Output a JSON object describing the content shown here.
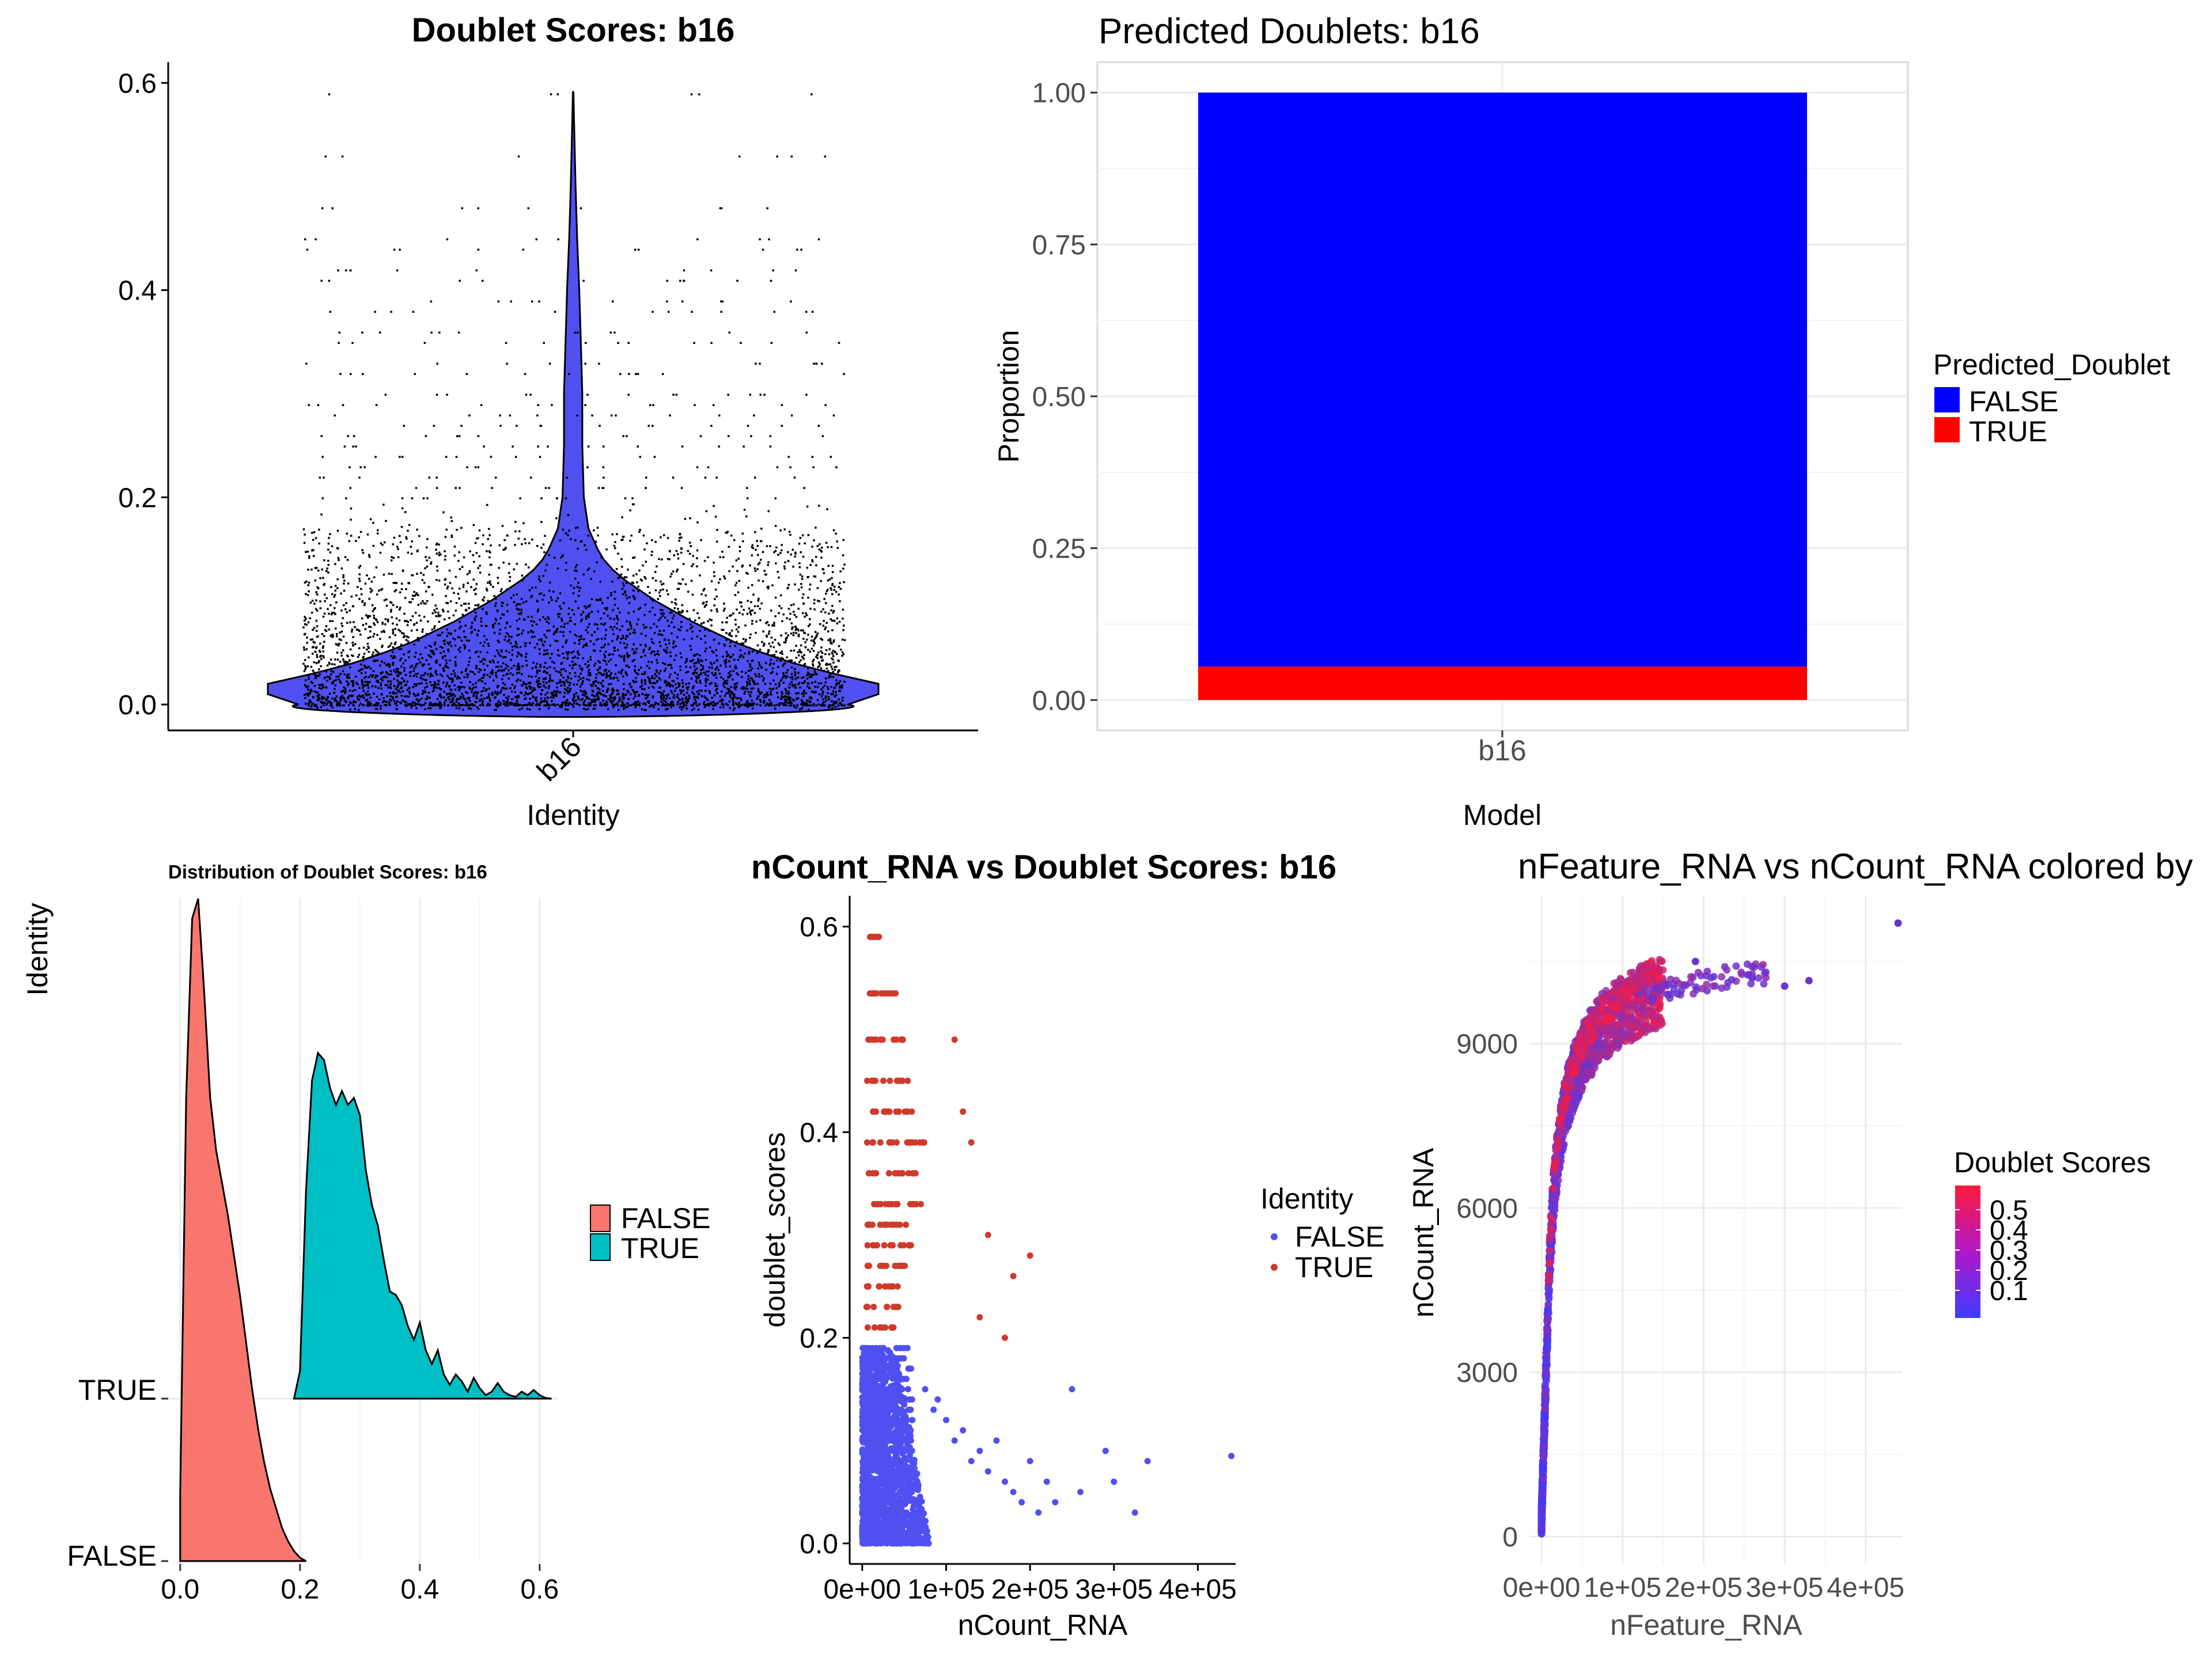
{
  "chart_data": [
    {
      "type": "violin",
      "title": "Doublet Scores: b16",
      "xlabel": "Identity",
      "ylabel": "",
      "categories": [
        "b16"
      ],
      "y_ticks": [
        "0.0",
        "0.2",
        "0.4",
        "0.6"
      ],
      "ylim": [
        -0.025,
        0.62
      ],
      "density_profile": [
        {
          "y": 0.0,
          "w": 0.9
        },
        {
          "y": 0.01,
          "w": 1.0
        },
        {
          "y": 0.02,
          "w": 1.0
        },
        {
          "y": 0.03,
          "w": 0.85
        },
        {
          "y": 0.04,
          "w": 0.72
        },
        {
          "y": 0.05,
          "w": 0.62
        },
        {
          "y": 0.06,
          "w": 0.53
        },
        {
          "y": 0.07,
          "w": 0.46
        },
        {
          "y": 0.08,
          "w": 0.39
        },
        {
          "y": 0.09,
          "w": 0.33
        },
        {
          "y": 0.1,
          "w": 0.27
        },
        {
          "y": 0.11,
          "w": 0.22
        },
        {
          "y": 0.12,
          "w": 0.17
        },
        {
          "y": 0.13,
          "w": 0.13
        },
        {
          "y": 0.14,
          "w": 0.1
        },
        {
          "y": 0.15,
          "w": 0.08
        },
        {
          "y": 0.17,
          "w": 0.05
        },
        {
          "y": 0.2,
          "w": 0.035
        },
        {
          "y": 0.25,
          "w": 0.03
        },
        {
          "y": 0.3,
          "w": 0.03
        },
        {
          "y": 0.35,
          "w": 0.025
        },
        {
          "y": 0.4,
          "w": 0.02
        },
        {
          "y": 0.45,
          "w": 0.013
        },
        {
          "y": 0.5,
          "w": 0.008
        },
        {
          "y": 0.55,
          "w": 0.004
        },
        {
          "y": 0.59,
          "w": 0.001
        }
      ],
      "jitter_score_levels": [
        0.0,
        0.01,
        0.02,
        0.03,
        0.04,
        0.05,
        0.06,
        0.07,
        0.08,
        0.09,
        0.1,
        0.11,
        0.12,
        0.13,
        0.14,
        0.15,
        0.16,
        0.17,
        0.18,
        0.19,
        0.2,
        0.21,
        0.22,
        0.23,
        0.24,
        0.25,
        0.26,
        0.27,
        0.28,
        0.29,
        0.3,
        0.32,
        0.33,
        0.35,
        0.36,
        0.38,
        0.39,
        0.41,
        0.42,
        0.44,
        0.45,
        0.48,
        0.53,
        0.59
      ],
      "fill_color": "#5050f0"
    },
    {
      "type": "bar",
      "stacked": true,
      "title": "Predicted Doublets: b16",
      "xlabel": "Model",
      "ylabel": "Proportion",
      "categories": [
        "b16"
      ],
      "y_ticks": [
        "0.00",
        "0.25",
        "0.50",
        "0.75",
        "1.00"
      ],
      "ylim": [
        -0.05,
        1.05
      ],
      "series": [
        {
          "name": "TRUE",
          "values": [
            0.055
          ],
          "color": "#ff0000"
        },
        {
          "name": "FALSE",
          "values": [
            0.945
          ],
          "color": "#0000ff"
        }
      ],
      "legend_title": "Predicted_Doublet",
      "legend_entries": [
        "FALSE",
        "TRUE"
      ],
      "legend_position": "right",
      "grid": true
    },
    {
      "type": "ridgeline",
      "title": "Distribution of Doublet Scores: b16",
      "xlabel": "",
      "ylabel": "Identity",
      "x_ticks": [
        "0.0",
        "0.2",
        "0.4",
        "0.6"
      ],
      "xlim": [
        -0.02,
        0.63
      ],
      "series": [
        {
          "name": "FALSE",
          "color": "#f8766d",
          "x": [
            0.0,
            0.01,
            0.02,
            0.03,
            0.04,
            0.05,
            0.06,
            0.07,
            0.08,
            0.09,
            0.1,
            0.11,
            0.12,
            0.13,
            0.14,
            0.15,
            0.16,
            0.17,
            0.18,
            0.19,
            0.2,
            0.21
          ],
          "density": [
            0.1,
            0.7,
            0.97,
            1.0,
            0.86,
            0.7,
            0.62,
            0.57,
            0.52,
            0.46,
            0.4,
            0.33,
            0.26,
            0.2,
            0.15,
            0.11,
            0.08,
            0.05,
            0.03,
            0.015,
            0.005,
            0.0
          ]
        },
        {
          "name": "TRUE",
          "color": "#00bfc4",
          "x": [
            0.19,
            0.2,
            0.21,
            0.22,
            0.23,
            0.24,
            0.25,
            0.26,
            0.27,
            0.28,
            0.29,
            0.3,
            0.31,
            0.32,
            0.33,
            0.34,
            0.35,
            0.36,
            0.37,
            0.38,
            0.39,
            0.4,
            0.41,
            0.42,
            0.43,
            0.44,
            0.45,
            0.46,
            0.47,
            0.48,
            0.49,
            0.5,
            0.51,
            0.52,
            0.53,
            0.54,
            0.55,
            0.56,
            0.57,
            0.58,
            0.59,
            0.6,
            0.61,
            0.62
          ],
          "density": [
            0.0,
            0.08,
            0.6,
            0.92,
            1.0,
            0.98,
            0.9,
            0.85,
            0.89,
            0.85,
            0.87,
            0.82,
            0.66,
            0.56,
            0.5,
            0.4,
            0.31,
            0.3,
            0.27,
            0.21,
            0.17,
            0.22,
            0.14,
            0.1,
            0.14,
            0.07,
            0.04,
            0.07,
            0.05,
            0.02,
            0.06,
            0.03,
            0.01,
            0.02,
            0.045,
            0.02,
            0.01,
            0.005,
            0.02,
            0.01,
            0.025,
            0.01,
            0.002,
            0.0
          ]
        }
      ],
      "categories": [
        "FALSE",
        "TRUE"
      ],
      "legend_entries": [
        "FALSE",
        "TRUE"
      ],
      "legend_position": "right",
      "grid": true
    },
    {
      "type": "scatter",
      "title": "nCount_RNA vs Doublet Scores: b16",
      "xlabel": "nCount_RNA",
      "ylabel": "doublet_scores",
      "x_ticks": [
        "0e+00",
        "1e+05",
        "2e+05",
        "3e+05",
        "4e+05"
      ],
      "y_ticks": [
        "0.0",
        "0.2",
        "0.4",
        "0.6"
      ],
      "xlim": [
        -15000,
        445000
      ],
      "ylim": [
        -0.02,
        0.63
      ],
      "legend_title": "Identity",
      "legend_entries": [
        "FALSE",
        "TRUE"
      ],
      "legend_position": "right",
      "series": [
        {
          "name": "FALSE",
          "color": "#5050f0",
          "bulk": {
            "x_max": 80000,
            "y_max": 0.19
          },
          "points": [
            [
              75000,
              0.15
            ],
            [
              85000,
              0.13
            ],
            [
              90000,
              0.14
            ],
            [
              100000,
              0.12
            ],
            [
              110000,
              0.1
            ],
            [
              120000,
              0.11
            ],
            [
              130000,
              0.08
            ],
            [
              140000,
              0.09
            ],
            [
              150000,
              0.07
            ],
            [
              160000,
              0.1
            ],
            [
              170000,
              0.06
            ],
            [
              180000,
              0.05
            ],
            [
              190000,
              0.04
            ],
            [
              200000,
              0.08
            ],
            [
              210000,
              0.03
            ],
            [
              220000,
              0.06
            ],
            [
              230000,
              0.04
            ],
            [
              250000,
              0.15
            ],
            [
              260000,
              0.05
            ],
            [
              290000,
              0.09
            ],
            [
              300000,
              0.06
            ],
            [
              325000,
              0.03
            ],
            [
              340000,
              0.08
            ],
            [
              440000,
              0.085
            ]
          ]
        },
        {
          "name": "TRUE",
          "color": "#d03a2b",
          "levels": [
            {
              "y": 0.59,
              "x_max": 30000
            },
            {
              "y": 0.535,
              "x_max": 40000
            },
            {
              "y": 0.49,
              "x_max": 50000
            },
            {
              "y": 0.45,
              "x_max": 55000
            },
            {
              "y": 0.42,
              "x_max": 60000
            },
            {
              "y": 0.39,
              "x_max": 75000
            },
            {
              "y": 0.36,
              "x_max": 65000
            },
            {
              "y": 0.33,
              "x_max": 70000
            },
            {
              "y": 0.31,
              "x_max": 60000
            },
            {
              "y": 0.29,
              "x_max": 60000
            },
            {
              "y": 0.27,
              "x_max": 55000
            },
            {
              "y": 0.25,
              "x_max": 50000
            },
            {
              "y": 0.23,
              "x_max": 45000
            },
            {
              "y": 0.21,
              "x_max": 40000
            }
          ],
          "points": [
            [
              110000,
              0.49
            ],
            [
              130000,
              0.39
            ],
            [
              120000,
              0.42
            ],
            [
              200000,
              0.28
            ],
            [
              180000,
              0.26
            ],
            [
              150000,
              0.3
            ],
            [
              170000,
              0.2
            ],
            [
              140000,
              0.22
            ]
          ]
        }
      ]
    },
    {
      "type": "scatter",
      "title": "nFeature_RNA vs nCount_RNA colored by",
      "xlabel": "nFeature_RNA",
      "ylabel": "nCount_RNA",
      "x_ticks": [
        "0e+00",
        "1e+05",
        "2e+05",
        "3e+05",
        "4e+05"
      ],
      "y_ticks": [
        "0",
        "3000",
        "6000",
        "9000"
      ],
      "xlim": [
        -15000,
        445000
      ],
      "ylim": [
        -500,
        11700
      ],
      "color_scale": {
        "title": "Doublet Scores",
        "low": "#3c3cff",
        "high": "#ff1a3c",
        "ticks": [
          "0.5",
          "0.4",
          "0.3",
          "0.2",
          "0.1"
        ]
      },
      "trend": [
        [
          0,
          300
        ],
        [
          1000,
          800
        ],
        [
          3000,
          1800
        ],
        [
          6000,
          3200
        ],
        [
          10000,
          5000
        ],
        [
          15000,
          6300
        ],
        [
          22000,
          7200
        ],
        [
          30000,
          7900
        ],
        [
          40000,
          8400
        ],
        [
          55000,
          8900
        ],
        [
          75000,
          9300
        ],
        [
          100000,
          9600
        ],
        [
          130000,
          9850
        ],
        [
          170000,
          10050
        ],
        [
          220000,
          10200
        ],
        [
          280000,
          10300
        ],
        [
          330000,
          10150
        ]
      ],
      "outliers": [
        [
          440000,
          11200
        ],
        [
          330000,
          10150
        ],
        [
          300000,
          10050
        ],
        [
          260000,
          10200
        ],
        [
          190000,
          10500
        ]
      ],
      "grid": true
    }
  ]
}
